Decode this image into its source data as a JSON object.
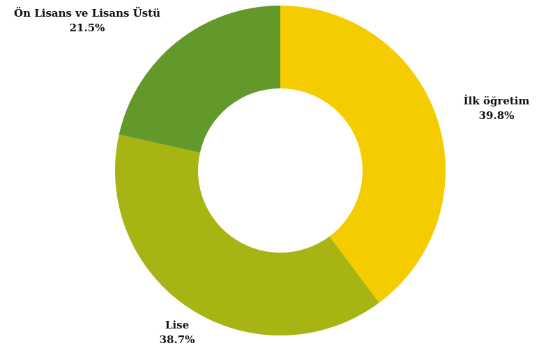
{
  "chart_data": {
    "type": "pie",
    "donut": true,
    "categories": [
      "İlk öğretim",
      "Lise",
      "Ön Lisans ve Lisans Üstü"
    ],
    "values": [
      39.8,
      38.7,
      21.5
    ],
    "value_labels": [
      "39.8%",
      "38.7%",
      "21.5%"
    ],
    "colors": [
      "#F5CC00",
      "#A8B414",
      "#63982B"
    ],
    "start_angle": "top, clockwise",
    "legend": "none"
  }
}
